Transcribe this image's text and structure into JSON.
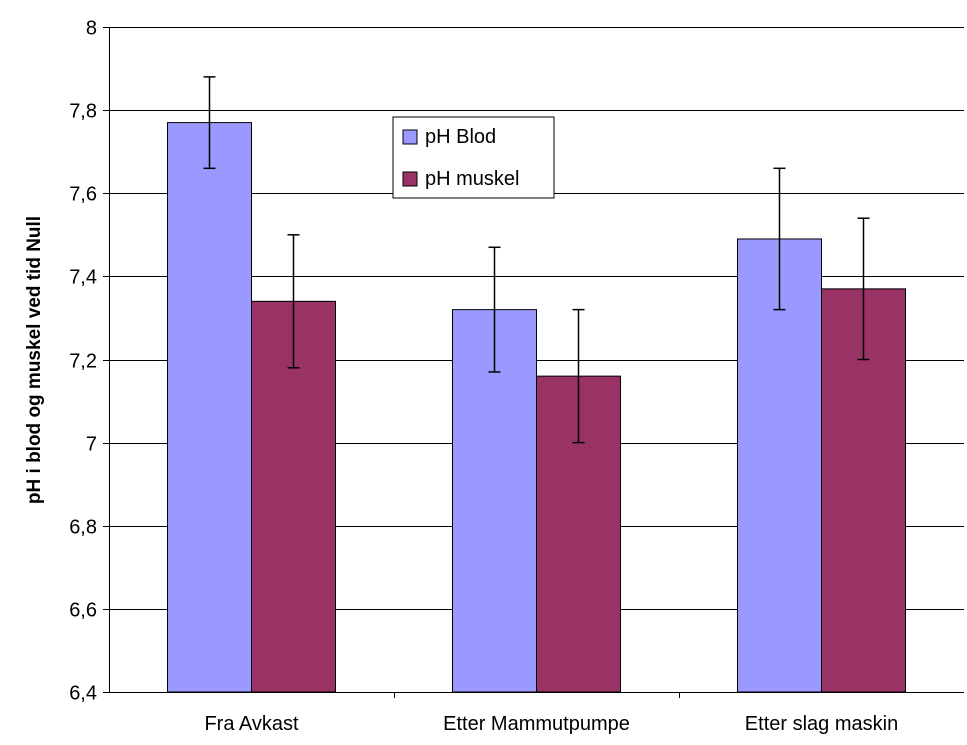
{
  "chart_data": {
    "type": "bar",
    "title": "",
    "xlabel": "",
    "ylabel": "pH i blod og muskel ved tid Null",
    "ylim": [
      6.4,
      8
    ],
    "yticks": [
      "6,4",
      "6,6",
      "6,8",
      "7",
      "7,2",
      "7,4",
      "7,6",
      "7,8",
      "8"
    ],
    "grid": true,
    "legend_position": "top-center",
    "categories": [
      "Fra Avkast",
      "Etter Mammutpumpe",
      "Etter slag maskin"
    ],
    "series": [
      {
        "name": "pH Blod",
        "color": "#9999ff",
        "values": [
          7.77,
          7.32,
          7.49
        ],
        "error_low": [
          7.66,
          7.17,
          7.32
        ],
        "error_high": [
          7.88,
          7.47,
          7.66
        ]
      },
      {
        "name": "pH muskel",
        "color": "#993366",
        "values": [
          7.34,
          7.16,
          7.37
        ],
        "error_low": [
          7.18,
          7.0,
          7.2
        ],
        "error_high": [
          7.5,
          7.32,
          7.54
        ]
      }
    ]
  }
}
